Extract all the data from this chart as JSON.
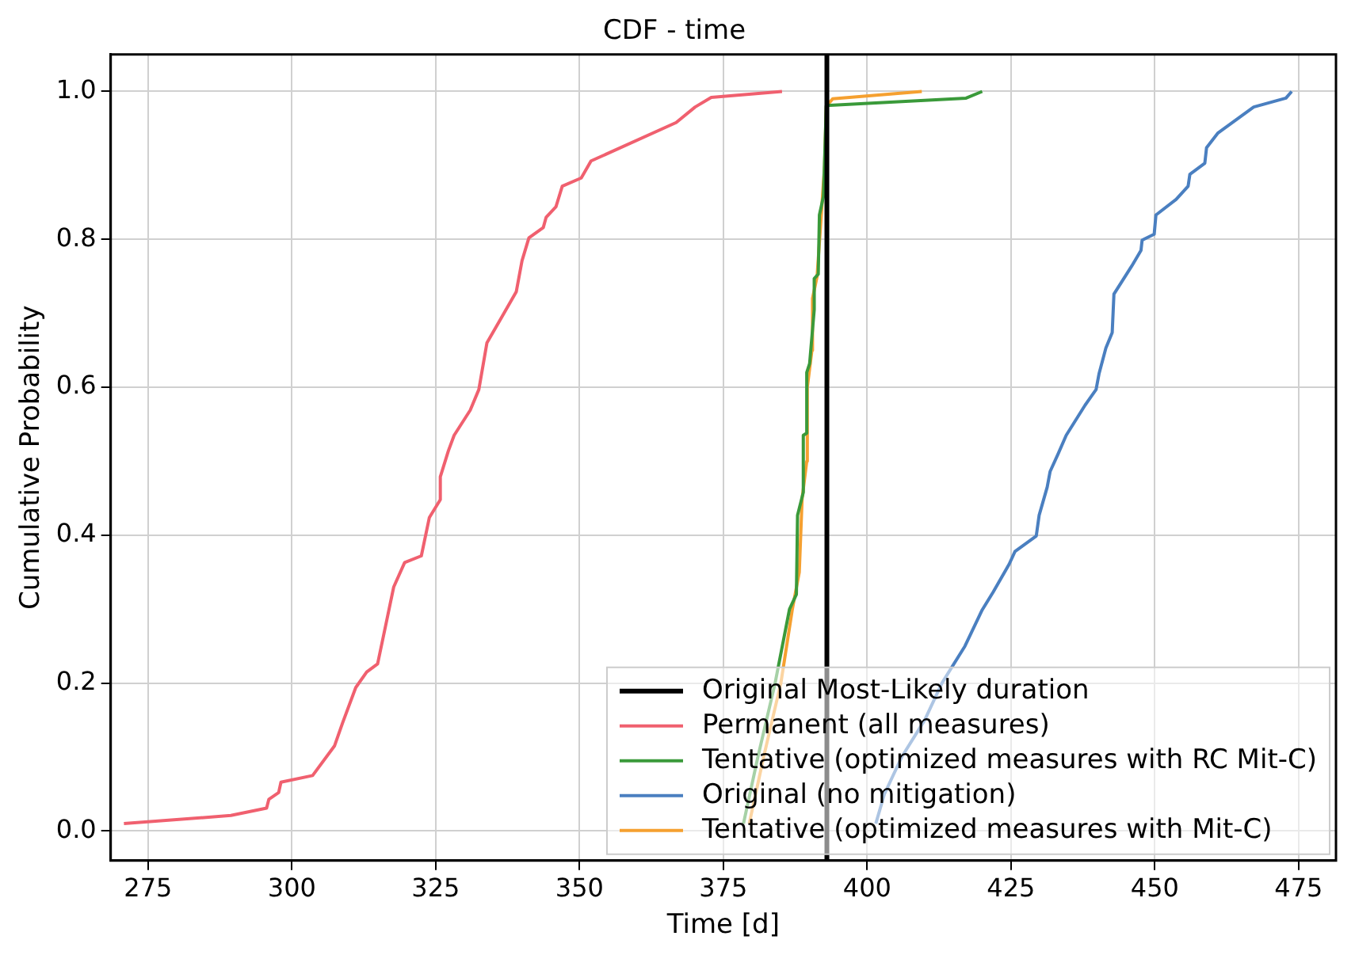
{
  "chart_data": {
    "type": "line",
    "title": "CDF - time",
    "xlabel": "Time [d]",
    "ylabel": "Cumulative Probability",
    "xlim": [
      268.5,
      481.5
    ],
    "ylim": [
      -0.04,
      1.05
    ],
    "xticks": [
      275,
      300,
      325,
      350,
      375,
      400,
      425,
      450,
      475
    ],
    "yticks": [
      {
        "value": 0,
        "label": "0.0"
      },
      {
        "value": 0.2,
        "label": "0.2"
      },
      {
        "value": 0.4,
        "label": "0.4"
      },
      {
        "value": 0.6,
        "label": "0.6"
      },
      {
        "value": 0.8,
        "label": "0.8"
      },
      {
        "value": 1,
        "label": "1.0"
      }
    ],
    "grid": true,
    "legend": "bottom right",
    "marker": "none",
    "line_style": "solid",
    "ref_lines": [
      {
        "axis": "x",
        "value": 393,
        "label": "Original Most-Likely duration",
        "color": "#000000"
      }
    ],
    "series": [
      {
        "name": "Permanent (all measures)",
        "color": "#f0606f",
        "x": [
          270.8,
          289.4,
          295.6,
          296.0,
          297.7,
          298.1,
          303.6,
          307.4,
          308.8,
          311.1,
          313.0,
          314.9,
          316.3,
          317.7,
          319.6,
          322.5,
          323.9,
          325.8,
          325.8,
          327.2,
          328.2,
          331.0,
          332.5,
          333.9,
          336.2,
          339.0,
          340.0,
          341.2,
          343.7,
          344.2,
          345.9,
          347.0,
          350.3,
          352.0,
          366.8,
          370.1,
          372.9,
          385.2
        ],
        "values": [
          0.01,
          0.021,
          0.031,
          0.043,
          0.052,
          0.066,
          0.075,
          0.115,
          0.146,
          0.194,
          0.215,
          0.226,
          0.278,
          0.33,
          0.363,
          0.372,
          0.424,
          0.448,
          0.479,
          0.514,
          0.535,
          0.569,
          0.597,
          0.66,
          0.691,
          0.729,
          0.771,
          0.802,
          0.816,
          0.83,
          0.844,
          0.872,
          0.883,
          0.906,
          0.958,
          0.979,
          0.992,
          1.0
        ]
      },
      {
        "name": "Tentative (optimized measures with RC Mit-C)",
        "color": "#3a9a3a",
        "x": [
          378.5,
          381,
          384,
          386.5,
          387.7,
          387.9,
          388.9,
          388.9,
          389.5,
          389.5,
          390.0,
          390.8,
          390.8,
          391.5,
          391.7,
          392.4,
          392.9,
          417.2,
          420
        ],
        "values": [
          0.01,
          0.1,
          0.2,
          0.3,
          0.32,
          0.427,
          0.458,
          0.535,
          0.538,
          0.62,
          0.632,
          0.705,
          0.747,
          0.753,
          0.833,
          0.858,
          0.981,
          0.991,
          1.0
        ]
      },
      {
        "name": "Original (no mitigation)",
        "color": "#4a7fc0",
        "x": [
          401.5,
          403,
          406,
          410,
          413,
          417,
          420.0,
          421.9,
          424.7,
          425.7,
          429.4,
          429.9,
          431.3,
          431.8,
          433.2,
          434.6,
          437.9,
          439.8,
          440.3,
          441.5,
          442.6,
          442.9,
          446.0,
          447.6,
          447.8,
          449.9,
          450.2,
          453.7,
          455.8,
          456.1,
          458.7,
          459.0,
          461.0,
          467.2,
          472.8,
          473.8
        ],
        "values": [
          0.01,
          0.05,
          0.1,
          0.15,
          0.2,
          0.25,
          0.299,
          0.323,
          0.361,
          0.378,
          0.399,
          0.427,
          0.465,
          0.486,
          0.51,
          0.535,
          0.576,
          0.597,
          0.618,
          0.653,
          0.674,
          0.726,
          0.764,
          0.785,
          0.799,
          0.807,
          0.833,
          0.854,
          0.872,
          0.888,
          0.903,
          0.924,
          0.944,
          0.979,
          0.991,
          1.0
        ]
      },
      {
        "name": "Tentative (optimized measures with Mit-C)",
        "color": "#f5a030",
        "x": [
          379.5,
          382,
          385,
          387,
          388.2,
          388.7,
          389.5,
          389.6,
          390.4,
          390.5,
          391.3,
          392,
          392.6,
          392.9,
          394,
          409.5
        ],
        "values": [
          0.01,
          0.1,
          0.2,
          0.3,
          0.35,
          0.45,
          0.5,
          0.6,
          0.65,
          0.72,
          0.75,
          0.83,
          0.9,
          0.98,
          0.99,
          1.0
        ]
      }
    ]
  }
}
